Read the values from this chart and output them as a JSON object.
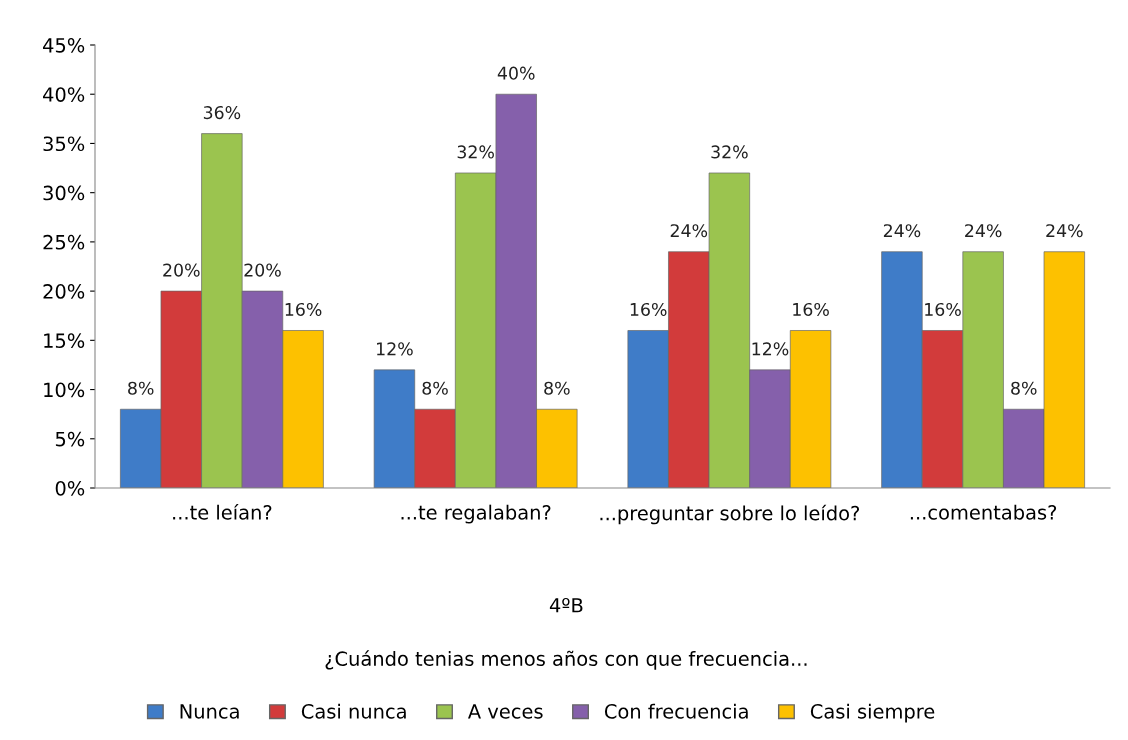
{
  "chart_data": {
    "type": "bar",
    "categories": [
      "...te leían?",
      "...te regalaban?",
      "...preguntar sobre lo leído?",
      "...comentabas?"
    ],
    "annotations": [
      "4ºB",
      "¿Cuándo tenias menos años con que frecuencia..."
    ],
    "series": [
      {
        "name": "Nunca",
        "color": "#3f7cc8",
        "values": [
          8,
          12,
          16,
          24
        ],
        "value_labels": [
          "8%",
          "12%",
          "16%",
          "24%"
        ]
      },
      {
        "name": "Casi nunca",
        "color": "#d23b3b",
        "values": [
          20,
          8,
          24,
          16
        ],
        "value_labels": [
          "20%",
          "8%",
          "24%",
          "16%"
        ]
      },
      {
        "name": "A veces",
        "color": "#9bc44f",
        "values": [
          36,
          32,
          32,
          24
        ],
        "value_labels": [
          "36%",
          "32%",
          "32%",
          "24%"
        ]
      },
      {
        "name": "Con frecuencia",
        "color": "#8560ab",
        "values": [
          20,
          40,
          12,
          8
        ],
        "value_labels": [
          "20%",
          "40%",
          "12%",
          "8%"
        ]
      },
      {
        "name": "Casi siempre",
        "color": "#fdc100",
        "values": [
          16,
          8,
          16,
          24
        ],
        "value_labels": [
          "16%",
          "8%",
          "16%",
          "24%"
        ]
      }
    ],
    "ylim": [
      0,
      45
    ],
    "yticks": [
      {
        "value": 0,
        "label": "0%"
      },
      {
        "value": 5,
        "label": "5%"
      },
      {
        "value": 10,
        "label": "10%"
      },
      {
        "value": 15,
        "label": "15%"
      },
      {
        "value": 20,
        "label": "20%"
      },
      {
        "value": 25,
        "label": "25%"
      },
      {
        "value": 30,
        "label": "30%"
      },
      {
        "value": 35,
        "label": "35%"
      },
      {
        "value": 40,
        "label": "40%"
      },
      {
        "value": 45,
        "label": "45%"
      }
    ],
    "grid": false,
    "legend": "bottom"
  }
}
